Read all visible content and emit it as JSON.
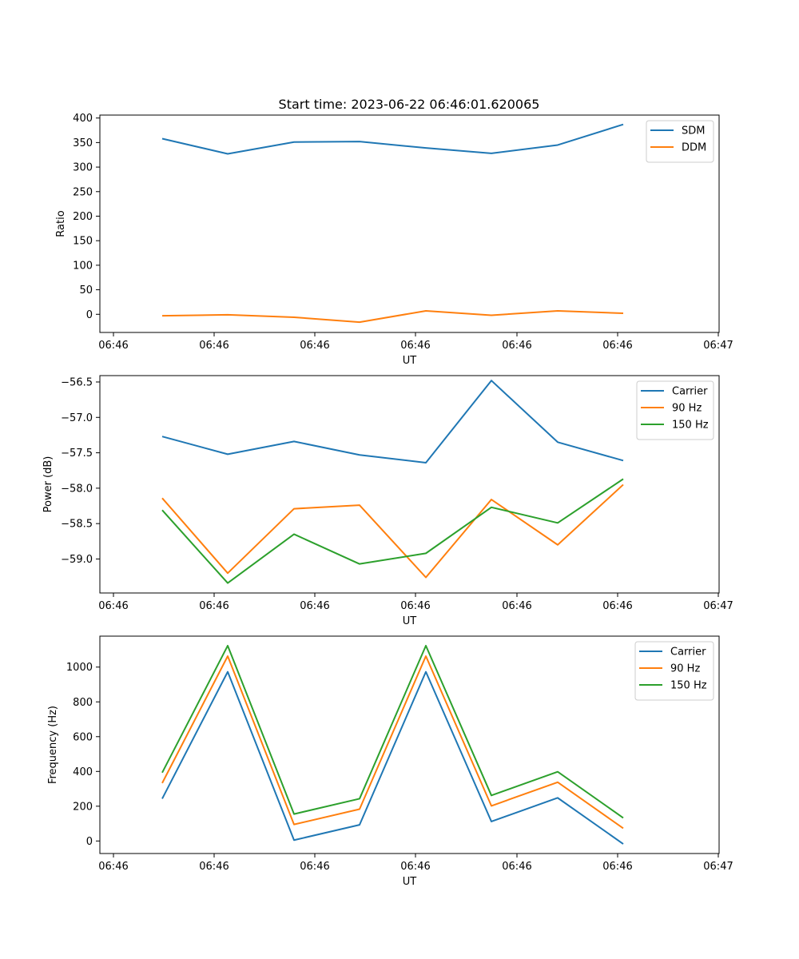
{
  "figure_title": "Start time: 2023-06-22 06:46:01.620065",
  "chart_data": [
    {
      "type": "line",
      "title": "Start time: 2023-06-22 06:46:01.620065",
      "xlabel": "UT",
      "ylabel": "Ratio",
      "x_tick_labels": [
        "06:46",
        "06:46",
        "06:46",
        "06:46",
        "06:46",
        "06:46",
        "06:47"
      ],
      "y_ticks": [
        0,
        50,
        100,
        150,
        200,
        250,
        300,
        350,
        400
      ],
      "ylim": [
        -37,
        406
      ],
      "legend_position": "top-right",
      "grid": false,
      "series": [
        {
          "name": "SDM",
          "color": "#1f77b4",
          "values": [
            358,
            327,
            351,
            352,
            339,
            328,
            345,
            387
          ]
        },
        {
          "name": "DDM",
          "color": "#ff7f0e",
          "values": [
            -3,
            -1,
            -6,
            -16,
            7,
            -2,
            7,
            2
          ]
        }
      ]
    },
    {
      "type": "line",
      "title": "",
      "xlabel": "UT",
      "ylabel": "Power (dB)",
      "x_tick_labels": [
        "06:46",
        "06:46",
        "06:46",
        "06:46",
        "06:46",
        "06:46",
        "06:47"
      ],
      "y_ticks": [
        -59.0,
        -58.5,
        -58.0,
        -57.5,
        -57.0,
        -56.5
      ],
      "y_tick_labels": [
        "−59.0",
        "−58.5",
        "−58.0",
        "−57.5",
        "−57.0",
        "−56.5"
      ],
      "ylim": [
        -59.48,
        -56.41
      ],
      "legend_position": "top-right",
      "grid": false,
      "series": [
        {
          "name": "Carrier",
          "color": "#1f77b4",
          "values": [
            -57.27,
            -57.52,
            -57.34,
            -57.53,
            -57.64,
            -56.48,
            -57.35,
            -57.61
          ]
        },
        {
          "name": "90 Hz",
          "color": "#ff7f0e",
          "values": [
            -58.14,
            -59.2,
            -58.29,
            -58.24,
            -59.26,
            -58.16,
            -58.8,
            -57.95
          ]
        },
        {
          "name": "150 Hz",
          "color": "#2ca02c",
          "values": [
            -58.31,
            -59.34,
            -58.65,
            -59.07,
            -58.92,
            -58.27,
            -58.49,
            -57.87
          ]
        }
      ]
    },
    {
      "type": "line",
      "title": "",
      "xlabel": "UT",
      "ylabel": "Frequency (Hz)",
      "x_tick_labels": [
        "06:46",
        "06:46",
        "06:46",
        "06:46",
        "06:46",
        "06:46",
        "06:47"
      ],
      "y_ticks": [
        0,
        200,
        400,
        600,
        800,
        1000
      ],
      "ylim": [
        -72,
        1178
      ],
      "legend_position": "top-right",
      "grid": false,
      "series": [
        {
          "name": "Carrier",
          "color": "#1f77b4",
          "values": [
            243,
            973,
            5,
            93,
            973,
            112,
            248,
            -17
          ]
        },
        {
          "name": "90 Hz",
          "color": "#ff7f0e",
          "values": [
            333,
            1063,
            95,
            183,
            1063,
            202,
            338,
            73
          ]
        },
        {
          "name": "150 Hz",
          "color": "#2ca02c",
          "values": [
            393,
            1123,
            155,
            243,
            1123,
            262,
            398,
            133
          ]
        }
      ]
    }
  ]
}
